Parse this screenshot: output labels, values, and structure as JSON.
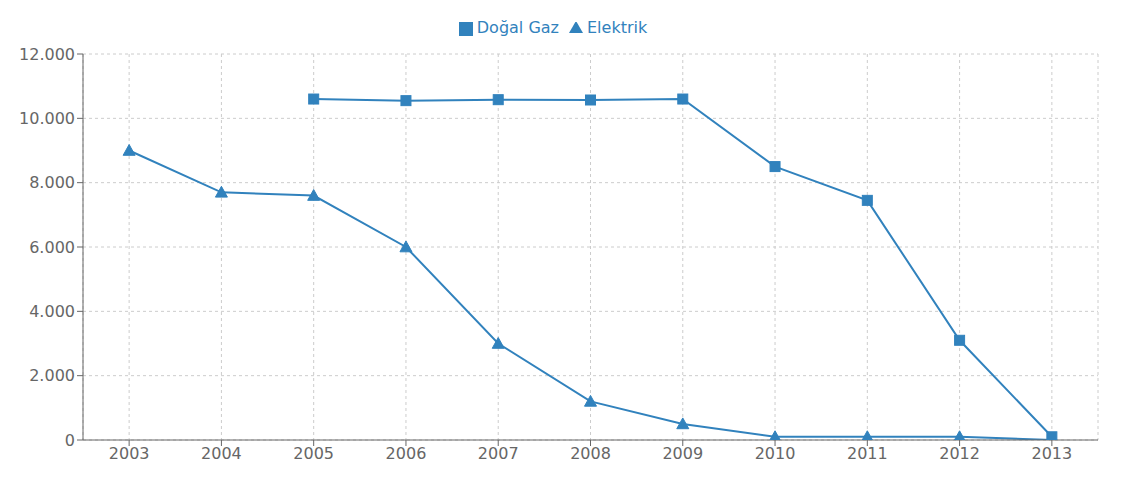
{
  "chart_data": {
    "type": "line",
    "x": [
      2003,
      2004,
      2005,
      2006,
      2007,
      2008,
      2009,
      2010,
      2011,
      2012,
      2013
    ],
    "series": [
      {
        "name": "Elektrik",
        "values": [
          9000,
          7700,
          7600,
          6000,
          3000,
          1200,
          500,
          100,
          100,
          100,
          0
        ],
        "marker": "triangle"
      },
      {
        "name": "Doğal Gaz",
        "values": [
          null,
          null,
          10600,
          10550,
          10580,
          10570,
          10600,
          8500,
          7450,
          3100,
          100
        ],
        "marker": "square"
      }
    ],
    "xlim": [
      2002.5,
      2013.5
    ],
    "xticks": [
      2003,
      2004,
      2005,
      2006,
      2007,
      2008,
      2009,
      2010,
      2011,
      2012,
      2013
    ],
    "ylim": [
      0,
      12000
    ],
    "yticks": [
      0,
      {
        "value": 2000,
        "label": "2.000"
      },
      {
        "value": 4000,
        "label": "4.000"
      },
      {
        "value": 6000,
        "label": "6.000"
      },
      {
        "value": 8000,
        "label": "8.000"
      },
      {
        "value": 10000,
        "label": "10.000"
      },
      {
        "value": 12000,
        "label": "12.000"
      }
    ],
    "grid": true,
    "legend": "top"
  }
}
